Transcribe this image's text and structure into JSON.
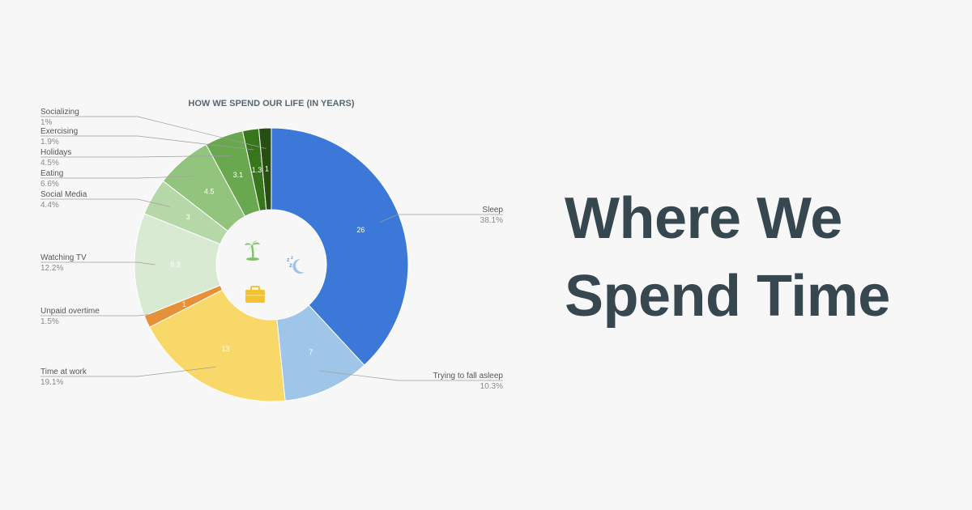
{
  "headline": {
    "line1": "Where We",
    "line2": "Spend Time"
  },
  "icons": [
    "palm-tree-icon",
    "sleep-moon-icon",
    "briefcase-icon"
  ],
  "chart_data": {
    "type": "pie",
    "donut": true,
    "title": "HOW WE SPEND OUR LIFE (IN YEARS)",
    "legend_placement": "outside-labels",
    "slices": [
      {
        "label": "Sleep",
        "value": 26,
        "value_label": "26",
        "percent": "38.1%",
        "color": "#3c78d8"
      },
      {
        "label": "Trying to fall asleep",
        "value": 7,
        "value_label": "7",
        "percent": "10.3%",
        "color": "#9fc5e8"
      },
      {
        "label": "Time at work",
        "value": 13,
        "value_label": "13",
        "percent": "19.1%",
        "color": "#f9d86a"
      },
      {
        "label": "Unpaid overtime",
        "value": 1,
        "value_label": "1",
        "percent": "1.5%",
        "color": "#e69138"
      },
      {
        "label": "Watching TV",
        "value": 8.3,
        "value_label": "8.3",
        "percent": "12.2%",
        "color": "#d9ead3"
      },
      {
        "label": "Social Media",
        "value": 3,
        "value_label": "3",
        "percent": "4.4%",
        "color": "#b6d7a8"
      },
      {
        "label": "Eating",
        "value": 4.5,
        "value_label": "4.5",
        "percent": "6.6%",
        "color": "#93c47d"
      },
      {
        "label": "Holidays",
        "value": 3.1,
        "value_label": "3.1",
        "percent": "4.5%",
        "color": "#6aa84f"
      },
      {
        "label": "Exercising",
        "value": 1.3,
        "value_label": "1.3",
        "percent": "1.9%",
        "color": "#38761d"
      },
      {
        "label": "Socializing",
        "value": 1,
        "value_label": "1",
        "percent": "1%",
        "color": "#274e13"
      }
    ]
  }
}
